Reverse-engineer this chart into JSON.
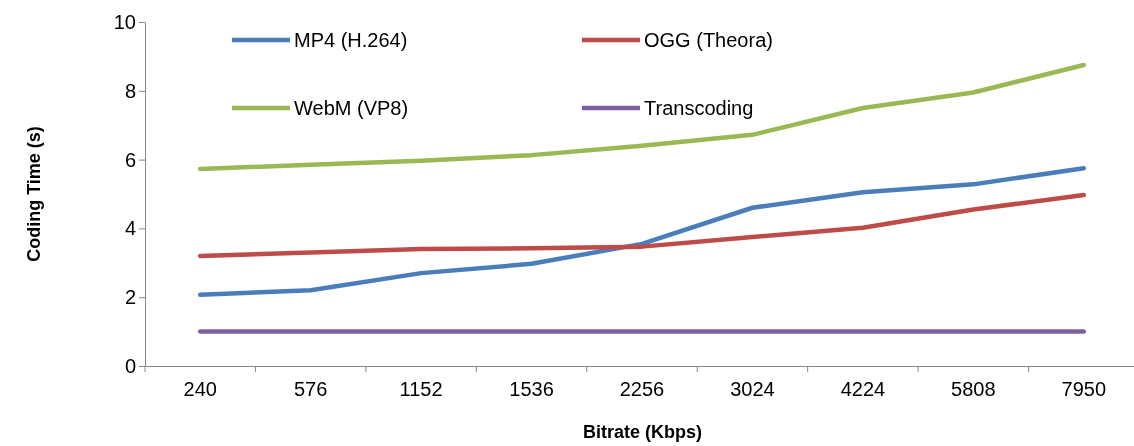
{
  "chart_data": {
    "type": "line",
    "xlabel": "Bitrate (Kbps)",
    "ylabel": "Coding Time (s)",
    "categories": [
      "240",
      "576",
      "1152",
      "1536",
      "2256",
      "3024",
      "4224",
      "5808",
      "7950"
    ],
    "series": [
      {
        "name": "MP4 (H.264)",
        "color": "#4a7ebb",
        "values": [
          2.07,
          2.2,
          2.7,
          2.97,
          3.55,
          4.6,
          5.05,
          5.28,
          5.75
        ]
      },
      {
        "name": "OGG (Theora)",
        "color": "#be4b48",
        "values": [
          3.2,
          3.3,
          3.4,
          3.42,
          3.47,
          3.75,
          4.02,
          4.55,
          4.97
        ]
      },
      {
        "name": "WebM (VP8)",
        "color": "#98b954",
        "values": [
          5.73,
          5.85,
          5.97,
          6.13,
          6.4,
          6.72,
          7.5,
          7.95,
          8.75
        ]
      },
      {
        "name": "Transcoding",
        "color": "#7d60a0",
        "values": [
          1,
          1,
          1,
          1,
          1,
          1,
          1,
          1,
          1
        ]
      }
    ],
    "ylim": [
      0,
      10
    ],
    "yticks": [
      0,
      2,
      4,
      6,
      8,
      10
    ],
    "grid": false,
    "legend": "top",
    "marker": "none",
    "line_style": "solid"
  }
}
